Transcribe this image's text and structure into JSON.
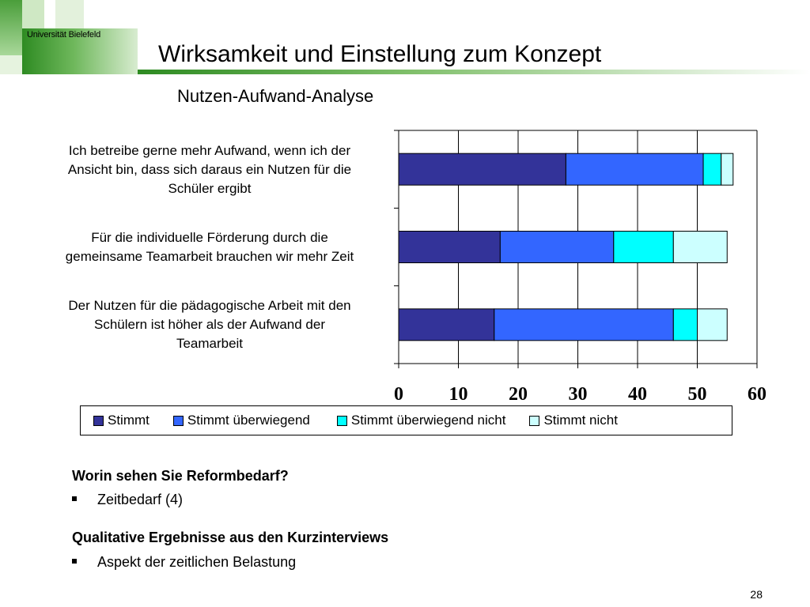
{
  "header": {
    "logo_text": "Universität Bielefeld",
    "title": "Wirksamkeit und Einstellung zum Konzept",
    "subtitle": "Nutzen-Aufwand-Analyse"
  },
  "chart_data": {
    "type": "bar",
    "orientation": "horizontal",
    "stacked": true,
    "title": "Nutzen-Aufwand-Analyse",
    "categories": [
      "Ich betreibe gerne mehr Aufwand, wenn ich der Ansicht bin, dass sich daraus ein Nutzen für die Schüler ergibt",
      "Für die individuelle Förderung durch die gemeinsame Teamarbeit brauchen wir mehr Zeit",
      "Der Nutzen für die pädagogische Arbeit mit den Schülern ist höher als der Aufwand der Teamarbeit"
    ],
    "category_lines": [
      [
        "Ich betreibe gerne mehr Aufwand, wenn ich der",
        "Ansicht bin, dass sich daraus ein Nutzen für die",
        "Schüler ergibt"
      ],
      [
        "Für die individuelle Förderung durch die",
        "gemeinsame Teamarbeit brauchen wir mehr Zeit"
      ],
      [
        "Der Nutzen für die pädagogische Arbeit mit den",
        "Schülern ist höher als der Aufwand der",
        "Teamarbeit"
      ]
    ],
    "series": [
      {
        "name": "Stimmt",
        "values": [
          28,
          17,
          16
        ],
        "color": "#333399"
      },
      {
        "name": "Stimmt überwiegend",
        "values": [
          23,
          19,
          30
        ],
        "color": "#3366ff"
      },
      {
        "name": "Stimmt überwiegend nicht",
        "values": [
          3,
          10,
          4
        ],
        "color": "#00ffff"
      },
      {
        "name": "Stimmt nicht",
        "values": [
          2,
          9,
          5
        ],
        "color": "#ccffff"
      }
    ],
    "xlim": [
      0,
      60
    ],
    "x_ticks": [
      "0",
      "10",
      "20",
      "30",
      "40",
      "50",
      "60"
    ],
    "grid": true,
    "legend_position": "bottom"
  },
  "questions": [
    {
      "heading": "Worin sehen Sie Reformbedarf?",
      "bullet": "Zeitbedarf (4)"
    },
    {
      "heading": "Qualitative Ergebnisse aus den Kurzinterviews",
      "bullet": "Aspekt der zeitlichen Belastung"
    }
  ],
  "footer": {
    "page_number": "28"
  }
}
